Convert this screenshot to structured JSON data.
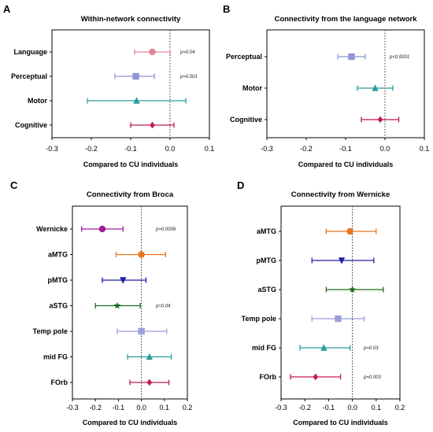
{
  "chart_data": [
    {
      "panel": "A",
      "type": "scatter",
      "title": "Within-network connectivity",
      "xlabel": "Compared to CU individuals",
      "xlim": [
        -0.3,
        0.1
      ],
      "xticks": [
        "-0.3",
        "-0.2",
        "-0.1",
        "0.0",
        "0.1"
      ],
      "categories": [
        "Language",
        "Perceptual",
        "Motor",
        "Cognitive"
      ],
      "series": [
        {
          "category": "Language",
          "value": -0.045,
          "ci": [
            -0.09,
            0.0
          ],
          "color": "#e0859c",
          "marker": "circle",
          "pvalue": "p=0.04"
        },
        {
          "category": "Perceptual",
          "value": -0.087,
          "ci": [
            -0.14,
            -0.04
          ],
          "color": "#8f94d4",
          "marker": "square",
          "pvalue": "p=0.001"
        },
        {
          "category": "Motor",
          "value": -0.085,
          "ci": [
            -0.21,
            0.04
          ],
          "color": "#2a9d9d",
          "marker": "triangle",
          "pvalue": ""
        },
        {
          "category": "Cognitive",
          "value": -0.045,
          "ci": [
            -0.1,
            0.01
          ],
          "color": "#c2185b",
          "marker": "diamond",
          "pvalue": ""
        }
      ]
    },
    {
      "panel": "B",
      "type": "scatter",
      "title": "Connectivity from the language network",
      "xlabel": "Compared to CU individuals",
      "xlim": [
        -0.3,
        0.1
      ],
      "xticks": [
        "-0.3",
        "-0.2",
        "-0.1",
        "0.0",
        "0.1"
      ],
      "categories": [
        "Perceptual",
        "Motor",
        "Cognitive"
      ],
      "series": [
        {
          "category": "Perceptual",
          "value": -0.085,
          "ci": [
            -0.12,
            -0.05
          ],
          "color": "#8f94d4",
          "marker": "square",
          "pvalue": "p<0.0001"
        },
        {
          "category": "Motor",
          "value": -0.025,
          "ci": [
            -0.07,
            0.02
          ],
          "color": "#2a9d9d",
          "marker": "triangle",
          "pvalue": ""
        },
        {
          "category": "Cognitive",
          "value": -0.012,
          "ci": [
            -0.06,
            0.035
          ],
          "color": "#c2185b",
          "marker": "diamond",
          "pvalue": ""
        }
      ]
    },
    {
      "panel": "C",
      "type": "scatter",
      "title": "Connectivity from Broca",
      "xlabel": "Compared to CU individuals",
      "xlim": [
        -0.3,
        0.2
      ],
      "xticks": [
        "-0.3",
        "-0.2",
        "-0.1",
        "0.0",
        "0.1",
        "0.2"
      ],
      "categories": [
        "Wernicke",
        "aMTG",
        "pMTG",
        "aSTG",
        "Temp pole",
        "mid FG",
        "FOrb"
      ],
      "series": [
        {
          "category": "Wernicke",
          "value": -0.17,
          "ci": [
            -0.26,
            -0.08
          ],
          "color": "#9c1c9c",
          "marker": "circle",
          "pvalue": "p=0.0006"
        },
        {
          "category": "aMTG",
          "value": 0.0,
          "ci": [
            -0.11,
            0.105
          ],
          "color": "#e8751a",
          "marker": "circle",
          "pvalue": ""
        },
        {
          "category": "pMTG",
          "value": -0.08,
          "ci": [
            -0.17,
            0.02
          ],
          "color": "#1f1fa0",
          "marker": "triangle-down",
          "pvalue": ""
        },
        {
          "category": "aSTG",
          "value": -0.105,
          "ci": [
            -0.2,
            -0.005
          ],
          "color": "#1b6e1b",
          "marker": "star",
          "pvalue": "p=0.04"
        },
        {
          "category": "Temp pole",
          "value": 0.0,
          "ci": [
            -0.105,
            0.11
          ],
          "color": "#9a9fdc",
          "marker": "square",
          "pvalue": ""
        },
        {
          "category": "mid FG",
          "value": 0.035,
          "ci": [
            -0.06,
            0.13
          ],
          "color": "#2a9d9d",
          "marker": "triangle",
          "pvalue": ""
        },
        {
          "category": "FOrb",
          "value": 0.035,
          "ci": [
            -0.05,
            0.12
          ],
          "color": "#c2185b",
          "marker": "diamond",
          "pvalue": ""
        }
      ]
    },
    {
      "panel": "D",
      "type": "scatter",
      "title": "Connectivity from Wernicke",
      "xlabel": "Compared to CU individuals",
      "xlim": [
        -0.3,
        0.2
      ],
      "xticks": [
        "-0.3",
        "-0.2",
        "-0.1",
        "0.0",
        "0.1",
        "0.2"
      ],
      "categories": [
        "aMTG",
        "pMTG",
        "aSTG",
        "Temp pole",
        "mid FG",
        "FOrb"
      ],
      "series": [
        {
          "category": "aMTG",
          "value": -0.01,
          "ci": [
            -0.11,
            0.1
          ],
          "color": "#e8751a",
          "marker": "circle",
          "pvalue": ""
        },
        {
          "category": "pMTG",
          "value": -0.045,
          "ci": [
            -0.17,
            0.09
          ],
          "color": "#1f1fa0",
          "marker": "triangle-down",
          "pvalue": ""
        },
        {
          "category": "aSTG",
          "value": 0.0,
          "ci": [
            -0.11,
            0.13
          ],
          "color": "#1b6e1b",
          "marker": "star",
          "pvalue": ""
        },
        {
          "category": "Temp pole",
          "value": -0.06,
          "ci": [
            -0.17,
            0.05
          ],
          "color": "#9a9fdc",
          "marker": "square",
          "pvalue": ""
        },
        {
          "category": "mid FG",
          "value": -0.12,
          "ci": [
            -0.22,
            -0.01
          ],
          "color": "#2a9d9d",
          "marker": "triangle",
          "pvalue": "p=0.03"
        },
        {
          "category": "FOrb",
          "value": -0.155,
          "ci": [
            -0.26,
            -0.05
          ],
          "color": "#c2185b",
          "marker": "diamond",
          "pvalue": "p=0.003"
        }
      ]
    }
  ]
}
